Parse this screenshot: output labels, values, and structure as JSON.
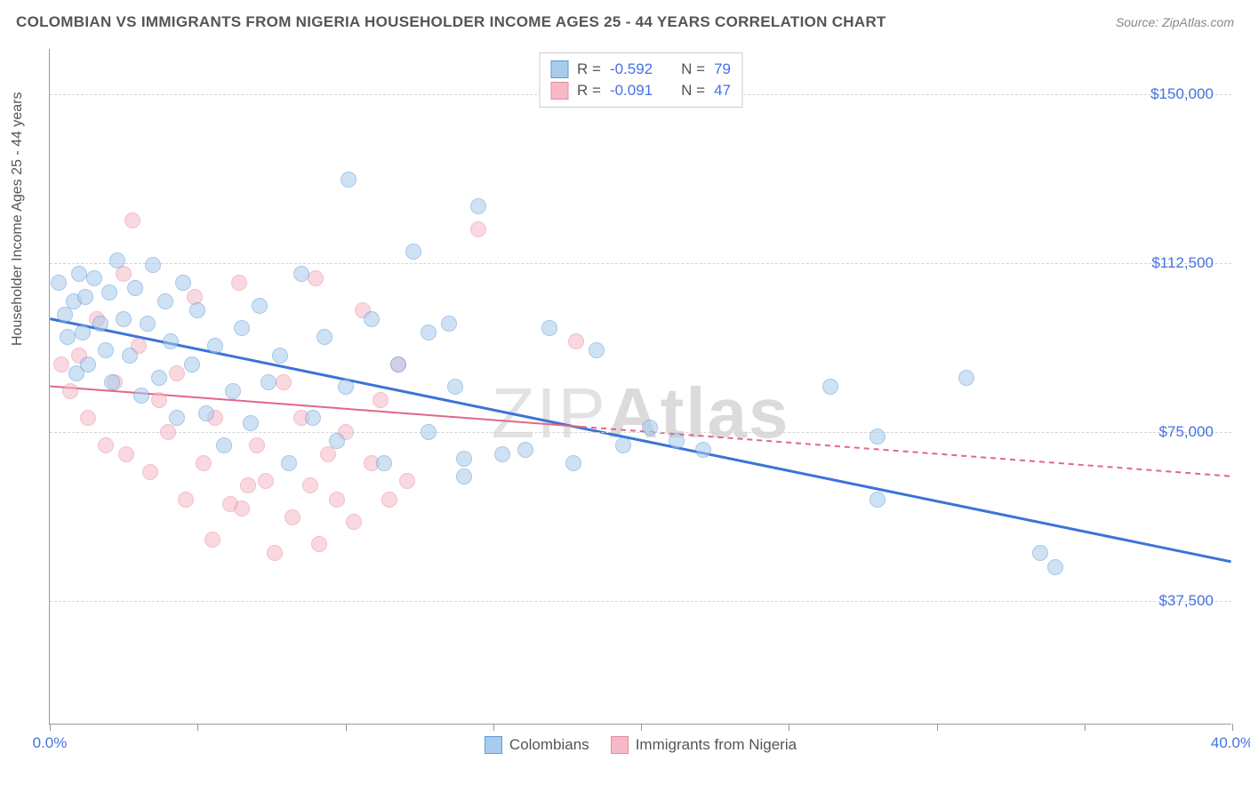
{
  "title": "COLOMBIAN VS IMMIGRANTS FROM NIGERIA HOUSEHOLDER INCOME AGES 25 - 44 YEARS CORRELATION CHART",
  "source": "Source: ZipAtlas.com",
  "watermark": "ZIPAtlas",
  "ylabel": "Householder Income Ages 25 - 44 years",
  "chart": {
    "type": "scatter",
    "xlim": [
      0,
      40
    ],
    "ylim": [
      10000,
      160000
    ],
    "xtick_positions": [
      0,
      5,
      10,
      15,
      20,
      25,
      30,
      35,
      40
    ],
    "xtick_labels": {
      "0": "0.0%",
      "40": "40.0%"
    },
    "ytick_positions": [
      37500,
      75000,
      112500,
      150000
    ],
    "ytick_labels": [
      "$37,500",
      "$75,000",
      "$112,500",
      "$150,000"
    ],
    "grid_color": "#d5d5d5",
    "background_color": "#ffffff",
    "marker_radius": 9,
    "series": [
      {
        "name": "Colombians",
        "key": "colombians",
        "fill": "#a9cbec",
        "stroke": "#5c9bd9",
        "fill_opacity": 0.55,
        "R": "-0.592",
        "N": "79",
        "trend": {
          "x1": 0,
          "y1": 100000,
          "x2": 40,
          "y2": 46000,
          "color": "#3b74d6",
          "width": 3,
          "dash_after_x": null
        },
        "points": [
          [
            0.3,
            108000
          ],
          [
            0.5,
            101000
          ],
          [
            0.6,
            96000
          ],
          [
            0.8,
            104000
          ],
          [
            0.9,
            88000
          ],
          [
            1.0,
            110000
          ],
          [
            1.1,
            97000
          ],
          [
            1.2,
            105000
          ],
          [
            1.3,
            90000
          ],
          [
            1.5,
            109000
          ],
          [
            1.7,
            99000
          ],
          [
            1.9,
            93000
          ],
          [
            2.0,
            106000
          ],
          [
            2.1,
            86000
          ],
          [
            2.3,
            113000
          ],
          [
            2.5,
            100000
          ],
          [
            2.7,
            92000
          ],
          [
            2.9,
            107000
          ],
          [
            3.1,
            83000
          ],
          [
            3.3,
            99000
          ],
          [
            3.5,
            112000
          ],
          [
            3.7,
            87000
          ],
          [
            3.9,
            104000
          ],
          [
            4.1,
            95000
          ],
          [
            4.3,
            78000
          ],
          [
            4.5,
            108000
          ],
          [
            4.8,
            90000
          ],
          [
            5.0,
            102000
          ],
          [
            5.3,
            79000
          ],
          [
            5.6,
            94000
          ],
          [
            5.9,
            72000
          ],
          [
            6.2,
            84000
          ],
          [
            6.5,
            98000
          ],
          [
            6.8,
            77000
          ],
          [
            7.1,
            103000
          ],
          [
            7.4,
            86000
          ],
          [
            7.8,
            92000
          ],
          [
            8.1,
            68000
          ],
          [
            8.5,
            110000
          ],
          [
            8.9,
            78000
          ],
          [
            9.3,
            96000
          ],
          [
            9.7,
            73000
          ],
          [
            10.1,
            131000
          ],
          [
            10.0,
            85000
          ],
          [
            10.9,
            100000
          ],
          [
            11.3,
            68000
          ],
          [
            11.8,
            90000
          ],
          [
            12.3,
            115000
          ],
          [
            12.8,
            75000
          ],
          [
            12.8,
            97000
          ],
          [
            13.5,
            99000
          ],
          [
            13.7,
            85000
          ],
          [
            14.0,
            65000
          ],
          [
            14.0,
            69000
          ],
          [
            14.5,
            125000
          ],
          [
            15.3,
            70000
          ],
          [
            16.1,
            71000
          ],
          [
            16.9,
            98000
          ],
          [
            17.7,
            68000
          ],
          [
            18.5,
            93000
          ],
          [
            19.4,
            72000
          ],
          [
            20.3,
            76000
          ],
          [
            21.2,
            73000
          ],
          [
            22.1,
            71000
          ],
          [
            26.4,
            85000
          ],
          [
            28.0,
            74000
          ],
          [
            28.0,
            60000
          ],
          [
            31.0,
            87000
          ],
          [
            33.5,
            48000
          ],
          [
            34.0,
            45000
          ]
        ]
      },
      {
        "name": "Immigrants from Nigeria",
        "key": "nigeria",
        "fill": "#f6b9c8",
        "stroke": "#e88ba3",
        "fill_opacity": 0.55,
        "R": "-0.091",
        "N": "47",
        "trend": {
          "x1": 0,
          "y1": 85000,
          "x2": 40,
          "y2": 65000,
          "color": "#e26688",
          "width": 2,
          "dash_after_x": 18
        },
        "points": [
          [
            0.4,
            90000
          ],
          [
            0.7,
            84000
          ],
          [
            1.0,
            92000
          ],
          [
            1.3,
            78000
          ],
          [
            1.6,
            100000
          ],
          [
            1.9,
            72000
          ],
          [
            2.2,
            86000
          ],
          [
            2.5,
            110000
          ],
          [
            2.6,
            70000
          ],
          [
            2.8,
            122000
          ],
          [
            3.0,
            94000
          ],
          [
            3.4,
            66000
          ],
          [
            3.7,
            82000
          ],
          [
            4.0,
            75000
          ],
          [
            4.3,
            88000
          ],
          [
            4.6,
            60000
          ],
          [
            4.9,
            105000
          ],
          [
            5.2,
            68000
          ],
          [
            5.5,
            51000
          ],
          [
            5.6,
            78000
          ],
          [
            6.1,
            59000
          ],
          [
            6.4,
            108000
          ],
          [
            6.7,
            63000
          ],
          [
            6.5,
            58000
          ],
          [
            7.0,
            72000
          ],
          [
            7.3,
            64000
          ],
          [
            7.6,
            48000
          ],
          [
            7.9,
            86000
          ],
          [
            8.2,
            56000
          ],
          [
            8.5,
            78000
          ],
          [
            8.8,
            63000
          ],
          [
            9.0,
            109000
          ],
          [
            9.1,
            50000
          ],
          [
            9.4,
            70000
          ],
          [
            9.7,
            60000
          ],
          [
            10.0,
            75000
          ],
          [
            10.3,
            55000
          ],
          [
            10.6,
            102000
          ],
          [
            10.9,
            68000
          ],
          [
            11.2,
            82000
          ],
          [
            11.5,
            60000
          ],
          [
            11.8,
            90000
          ],
          [
            12.1,
            64000
          ],
          [
            14.5,
            120000
          ],
          [
            17.8,
            95000
          ]
        ]
      }
    ]
  },
  "legend_bottom": [
    {
      "label": "Colombians",
      "fill": "#a9cbec",
      "stroke": "#5c9bd9"
    },
    {
      "label": "Immigrants from Nigeria",
      "fill": "#f6b9c8",
      "stroke": "#e88ba3"
    }
  ]
}
